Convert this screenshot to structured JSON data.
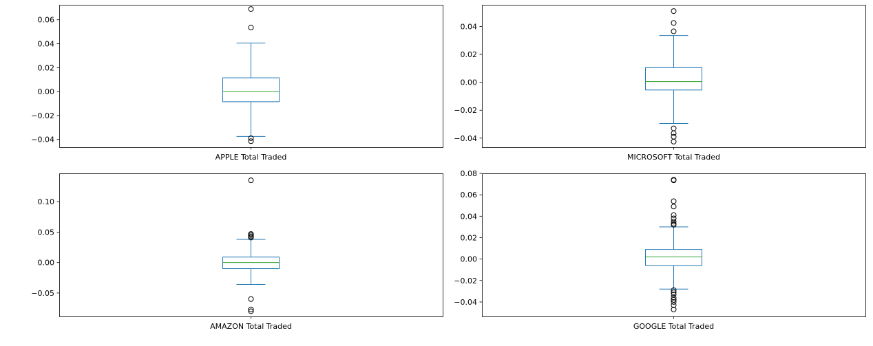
{
  "colors": {
    "box": "#1f77b4",
    "median": "#2ca02c",
    "flier": "#000000",
    "frame": "#000000"
  },
  "chart_data": [
    {
      "type": "box",
      "xlabel": "APPLE Total Traded",
      "ylim": [
        -0.0465,
        0.0725
      ],
      "yticks": [
        -0.04,
        -0.02,
        0.0,
        0.02,
        0.04,
        0.06
      ],
      "ytick_labels": [
        "−0.04",
        "−0.02",
        "0.00",
        "0.02",
        "0.04",
        "0.06"
      ],
      "stats": {
        "whisker_low": -0.0375,
        "q1": -0.0085,
        "median": 0.0,
        "q3": 0.0115,
        "whisker_high": 0.0405
      },
      "fliers": [
        0.069,
        0.0535,
        -0.039,
        -0.0415
      ]
    },
    {
      "type": "box",
      "xlabel": "MICROSOFT Total Traded",
      "ylim": [
        -0.0465,
        0.0555
      ],
      "yticks": [
        -0.04,
        -0.02,
        0.0,
        0.02,
        0.04
      ],
      "ytick_labels": [
        "−0.04",
        "−0.02",
        "0.00",
        "0.02",
        "0.04"
      ],
      "stats": {
        "whisker_low": -0.0295,
        "q1": -0.0055,
        "median": 0.0005,
        "q3": 0.0105,
        "whisker_high": 0.0335
      },
      "fliers": [
        0.051,
        0.0425,
        0.0365,
        -0.033,
        -0.0365,
        -0.039,
        -0.0425
      ]
    },
    {
      "type": "box",
      "xlabel": "AMAZON Total Traded",
      "ylim": [
        -0.0885,
        0.1465
      ],
      "yticks": [
        -0.05,
        0.0,
        0.05,
        0.1
      ],
      "ytick_labels": [
        "−0.05",
        "0.00",
        "0.05",
        "0.10"
      ],
      "stats": {
        "whisker_low": -0.036,
        "q1": -0.01,
        "median": 0.0,
        "q3": 0.009,
        "whisker_high": 0.038
      },
      "fliers": [
        0.135,
        0.047,
        0.045,
        0.043,
        0.041,
        -0.06,
        -0.077,
        -0.08
      ]
    },
    {
      "type": "box",
      "xlabel": "GOOGLE Total Traded",
      "ylim": [
        -0.0535,
        0.08
      ],
      "yticks": [
        -0.04,
        -0.02,
        0.0,
        0.02,
        0.04,
        0.06,
        0.08
      ],
      "ytick_labels": [
        "−0.04",
        "−0.02",
        "0.00",
        "0.02",
        "0.04",
        "0.06",
        "0.08"
      ],
      "stats": {
        "whisker_low": -0.028,
        "q1": -0.006,
        "median": 0.002,
        "q3": 0.009,
        "whisker_high": 0.03
      },
      "fliers": [
        0.074,
        0.0735,
        0.054,
        0.049,
        0.041,
        0.038,
        0.035,
        0.033,
        0.032,
        -0.029,
        -0.031,
        -0.033,
        -0.036,
        -0.038,
        -0.04,
        -0.043,
        -0.047
      ]
    }
  ]
}
